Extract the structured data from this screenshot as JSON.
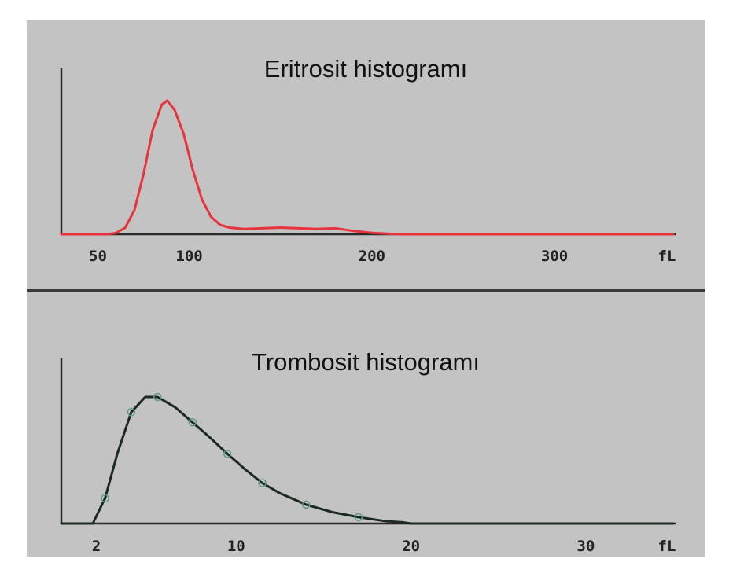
{
  "chart_data": [
    {
      "type": "line",
      "title": "Eritrosit histogramı",
      "xlabel": "fL",
      "xlim": [
        30,
        365
      ],
      "ylim": [
        0,
        1.0
      ],
      "x_ticks": [
        50,
        100,
        200,
        300
      ],
      "series": [
        {
          "color": "#e8323c",
          "x": [
            30,
            55,
            60,
            65,
            70,
            75,
            80,
            85,
            88,
            92,
            97,
            102,
            107,
            112,
            117,
            122,
            130,
            140,
            150,
            160,
            170,
            180,
            190,
            200,
            215,
            240,
            280,
            320,
            365
          ],
          "y": [
            0,
            0,
            0.01,
            0.05,
            0.18,
            0.45,
            0.78,
            0.97,
            1.0,
            0.93,
            0.75,
            0.48,
            0.26,
            0.13,
            0.07,
            0.05,
            0.04,
            0.045,
            0.05,
            0.045,
            0.04,
            0.045,
            0.025,
            0.01,
            0,
            0,
            0,
            0,
            0
          ]
        }
      ]
    },
    {
      "type": "line",
      "title": "Trombosit histogramı",
      "xlabel": "fL",
      "xlim": [
        0,
        35
      ],
      "ylim": [
        0,
        1.0
      ],
      "x_ticks": [
        2,
        10,
        20,
        30
      ],
      "series": [
        {
          "color": "#1b2a20",
          "x": [
            0,
            1.8,
            2.5,
            3.2,
            4,
            4.8,
            5.5,
            6.5,
            7.5,
            8.5,
            9.5,
            10.5,
            11.5,
            12.5,
            14,
            15.5,
            17,
            18.5,
            19.5,
            20,
            25,
            35
          ],
          "y": [
            0,
            0,
            0.2,
            0.55,
            0.88,
            1.0,
            1.0,
            0.92,
            0.8,
            0.68,
            0.55,
            0.43,
            0.32,
            0.24,
            0.15,
            0.09,
            0.05,
            0.02,
            0.01,
            0,
            0,
            0
          ]
        }
      ]
    }
  ]
}
